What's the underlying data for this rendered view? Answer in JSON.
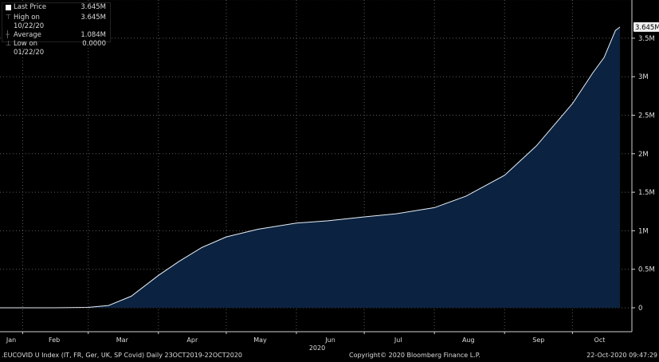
{
  "chart_data": {
    "type": "area",
    "title": "",
    "xlabel": "2020",
    "ylabel": "",
    "x_tick_labels": [
      "Jan",
      "Feb",
      "Mar",
      "Apr",
      "May",
      "Jun",
      "Jul",
      "Aug",
      "Sep",
      "Oct"
    ],
    "y_tick_labels": [
      "0",
      "0.5M",
      "1M",
      "1.5M",
      "2M",
      "2.5M",
      "3M",
      "3.5M"
    ],
    "y_ticks": [
      0,
      0.5,
      1,
      1.5,
      2,
      2.5,
      3,
      3.5
    ],
    "ylim": [
      -0.3,
      4.0
    ],
    "xlim": [
      "2020-01-22",
      "2020-10-22"
    ],
    "grid": true,
    "last_value_label": "3.645M",
    "series": [
      {
        "name": "Last Price",
        "unit": "M",
        "points": [
          [
            "2020-01-22",
            0
          ],
          [
            "2020-02-15",
            0
          ],
          [
            "2020-03-01",
            0.005
          ],
          [
            "2020-03-10",
            0.03
          ],
          [
            "2020-03-20",
            0.15
          ],
          [
            "2020-04-01",
            0.42
          ],
          [
            "2020-04-10",
            0.6
          ],
          [
            "2020-04-20",
            0.78
          ],
          [
            "2020-05-01",
            0.92
          ],
          [
            "2020-05-15",
            1.02
          ],
          [
            "2020-06-01",
            1.1
          ],
          [
            "2020-06-15",
            1.13
          ],
          [
            "2020-07-01",
            1.18
          ],
          [
            "2020-07-15",
            1.22
          ],
          [
            "2020-08-01",
            1.3
          ],
          [
            "2020-08-15",
            1.45
          ],
          [
            "2020-09-01",
            1.72
          ],
          [
            "2020-09-15",
            2.1
          ],
          [
            "2020-10-01",
            2.65
          ],
          [
            "2020-10-10",
            3.05
          ],
          [
            "2020-10-15",
            3.25
          ],
          [
            "2020-10-20",
            3.6
          ],
          [
            "2020-10-22",
            3.645
          ]
        ]
      }
    ]
  },
  "legend": [
    {
      "label": "Last Price",
      "value": "3.645M"
    },
    {
      "label": "High on 10/22/20",
      "value": "3.645M"
    },
    {
      "label": "Average",
      "value": "1.084M"
    },
    {
      "label": "Low on 01/22/20",
      "value": "0.0000"
    }
  ],
  "footer": {
    "security": ".EUCOVID U Index (IT, FR, Ger, UK, SP Covid)  Daily 23OCT2019-22OCT2020",
    "copyright": "Copyright© 2020 Bloomberg Finance L.P.",
    "timestamp": "22-Oct-2020 09:47:29"
  },
  "colors": {
    "fill": "#0b2340",
    "line": "#e8eef5",
    "grid": "#5a5a5a",
    "axis": "#cfcfcf"
  }
}
